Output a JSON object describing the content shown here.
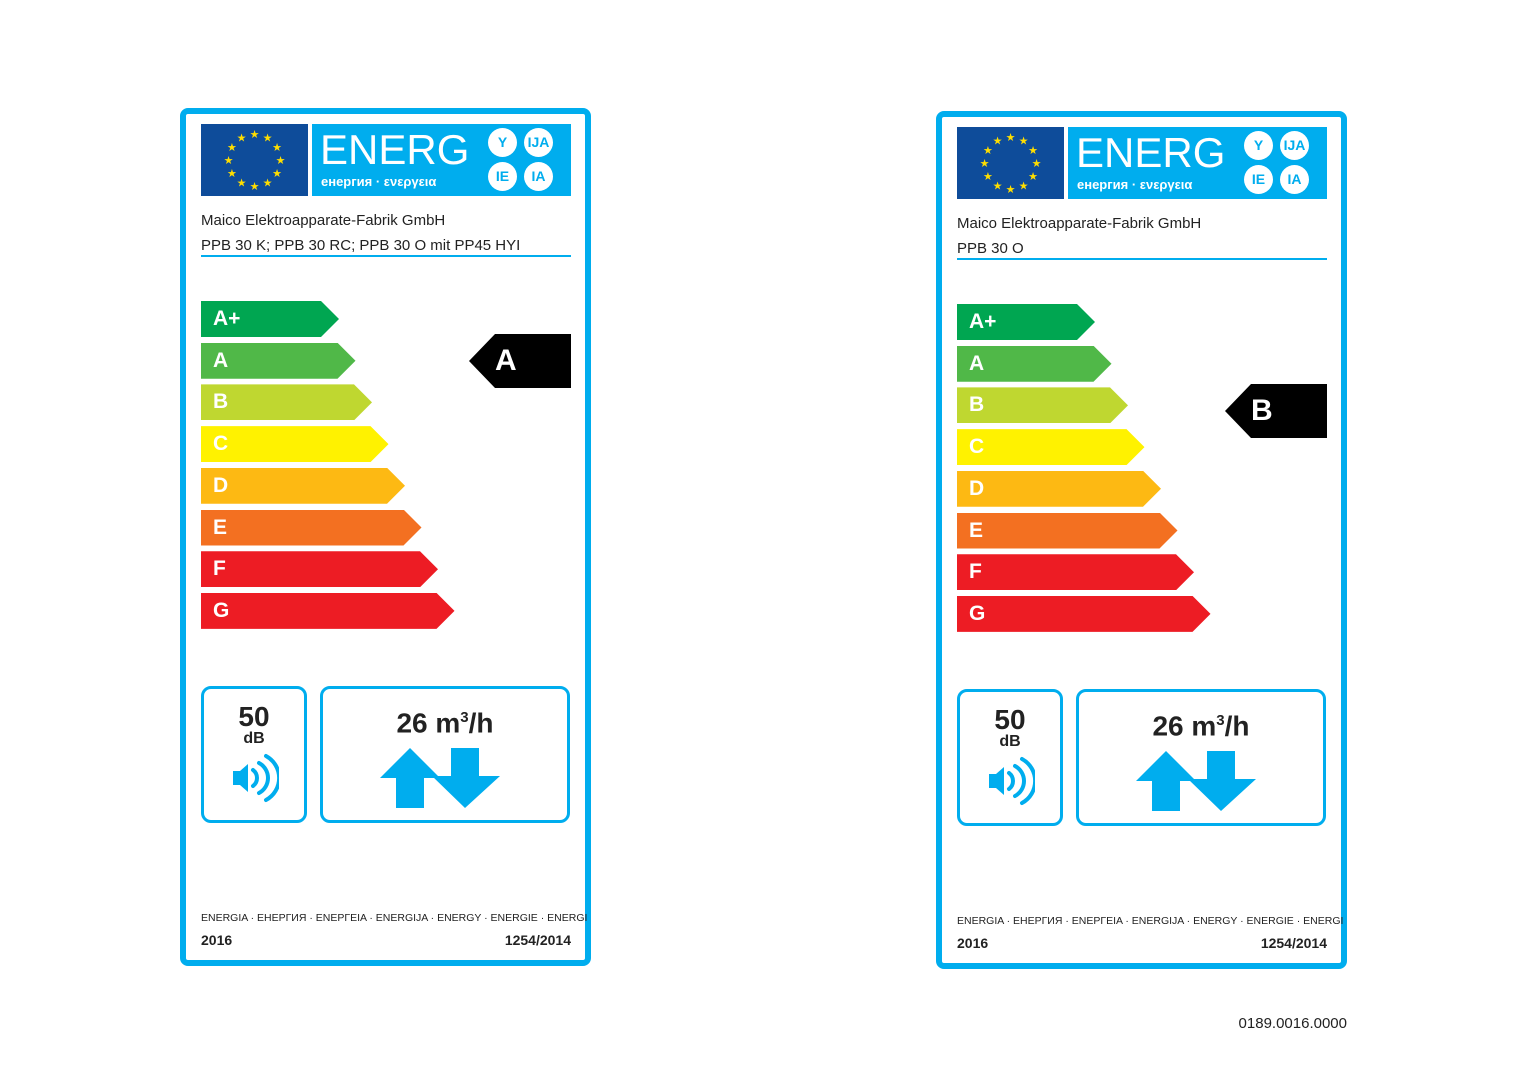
{
  "header": {
    "energ": "ENERG",
    "languages": "енергия · ενεργεια",
    "circles": [
      "Y",
      "IJA",
      "IE",
      "IA"
    ]
  },
  "scale": [
    {
      "class": "A+",
      "color": "#00a651"
    },
    {
      "class": "A",
      "color": "#50b848"
    },
    {
      "class": "B",
      "color": "#bfd730"
    },
    {
      "class": "C",
      "color": "#fff200"
    },
    {
      "class": "D",
      "color": "#fdb913"
    },
    {
      "class": "E",
      "color": "#f37021"
    },
    {
      "class": "F",
      "color": "#ed1c24"
    },
    {
      "class": "G",
      "color": "#ed1c24"
    }
  ],
  "labels": [
    {
      "supplier": "Maico Elektroapparate-Fabrik GmbH",
      "model": "PPB 30 K; PPB 30 RC; PPB 30 O mit PP45 HYI",
      "rating": "A",
      "noise_value": "50",
      "noise_unit": "dB",
      "flow_value": "26 m",
      "flow_sup": "3",
      "flow_unit": "/h",
      "footer_languages": "ENERGIA · ЕНЕРГИЯ · ΕΝΕΡΓΕΙΑ · ENERGIJA · ENERGY · ENERGIE · ENERGI",
      "year": "2016",
      "regulation": "1254/2014"
    },
    {
      "supplier": "Maico Elektroapparate-Fabrik GmbH",
      "model": "PPB 30 O",
      "rating": "B",
      "noise_value": "50",
      "noise_unit": "dB",
      "flow_value": "26 m",
      "flow_sup": "3",
      "flow_unit": "/h",
      "footer_languages": "ENERGIA · ЕНЕРГИЯ · ΕΝΕΡΓΕΙΑ · ENERGIJA · ENERGY · ENERGIE · ENERGI",
      "year": "2016",
      "regulation": "1254/2014"
    }
  ],
  "reference_number": "0189.0016.0000"
}
